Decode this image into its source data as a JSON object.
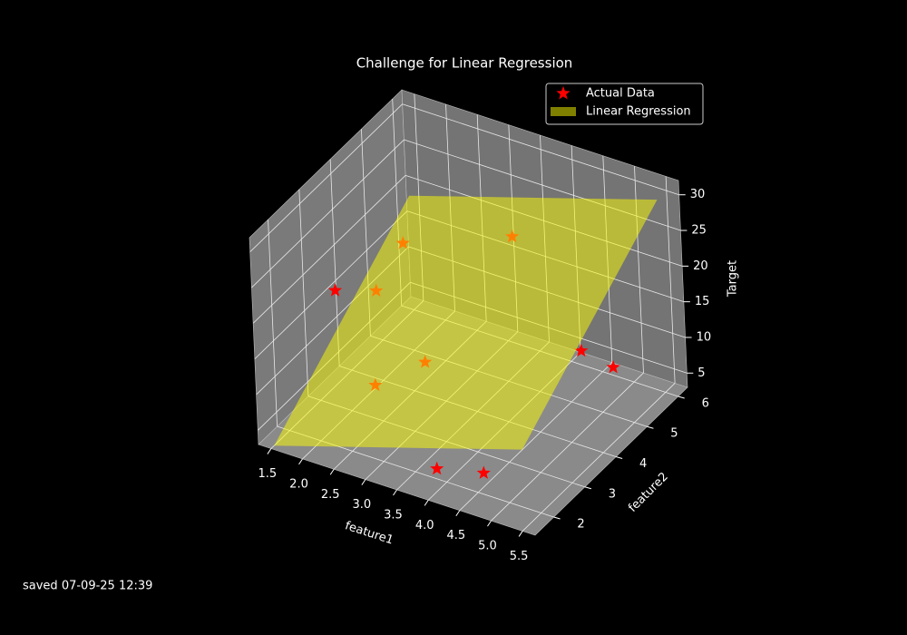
{
  "chart_data": {
    "type": "scatter3d",
    "title": "Challenge for Linear Regression",
    "xlabel": "feature1",
    "ylabel": "feature2",
    "zlabel": "Target",
    "xlim": [
      1.3,
      5.7
    ],
    "ylim": [
      1.4,
      6.3
    ],
    "zlim": [
      3,
      32
    ],
    "xticks": [
      {
        "value": 1.5,
        "label": "1.5"
      },
      {
        "value": 2,
        "label": "2.0"
      },
      {
        "value": 2.5,
        "label": "2.5"
      },
      {
        "value": 3,
        "label": "3.0"
      },
      {
        "value": 3.5,
        "label": "3.5"
      },
      {
        "value": 4,
        "label": "4.0"
      },
      {
        "value": 4.5,
        "label": "4.5"
      },
      {
        "value": 5,
        "label": "5.0"
      },
      {
        "value": 5.5,
        "label": "5.5"
      }
    ],
    "yticks": [
      2,
      3,
      4,
      5,
      6
    ],
    "zticks": [
      5,
      10,
      15,
      20,
      25,
      30
    ],
    "grid": true,
    "legend": "upper right",
    "series": [
      {
        "name": "Actual Data",
        "type": "scatter",
        "color": "#ff0000",
        "x": [
          1.6,
          2.0,
          2.1,
          2.6,
          3.0,
          3.5,
          3.9,
          4.6,
          4.9,
          5.3
        ],
        "y": [
          3.4,
          3.9,
          4.6,
          2.6,
          3.4,
          5.3,
          1.9,
          2.0,
          4.6,
          4.8
        ],
        "z": [
          17,
          16,
          20,
          10,
          11,
          22,
          5,
          6,
          13,
          11
        ]
      },
      {
        "name": "Linear Regression",
        "type": "surface",
        "color": "#ffff00",
        "x": [
          1.5,
          5.5
        ],
        "y": [
          1.5,
          6.0
        ],
        "z": [
          [
            3,
            14
          ],
          [
            19,
            30
          ]
        ]
      }
    ],
    "footer": "saved 07-09-25 12:39"
  }
}
